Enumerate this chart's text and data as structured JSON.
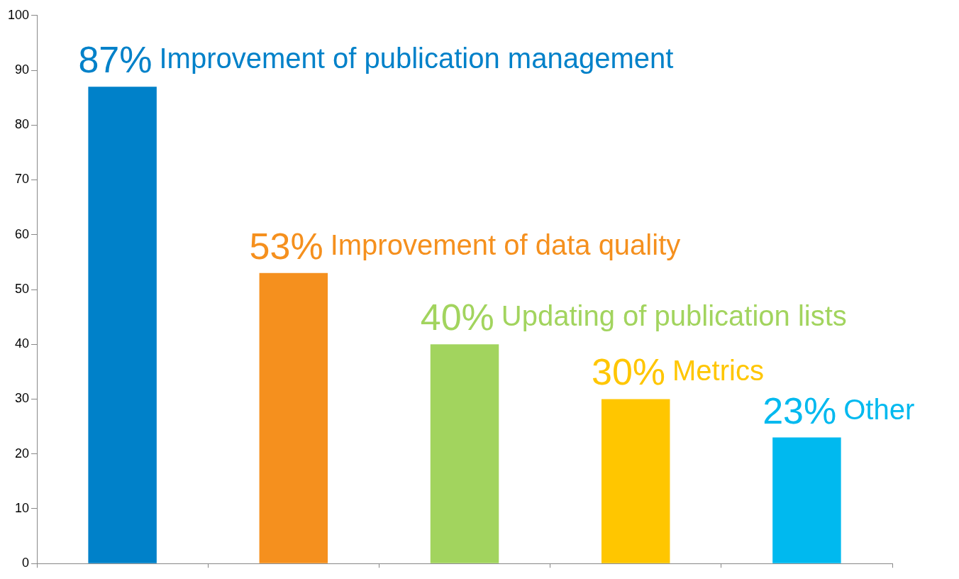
{
  "chart_data": {
    "type": "bar",
    "categories": [
      null,
      null,
      null,
      null,
      null
    ],
    "series": [
      {
        "name": "Improvement of publication management",
        "color": "#0081c9",
        "values": [
          87,
          null,
          null,
          null,
          null
        ],
        "value_labels": [
          "87%",
          null,
          null,
          null,
          null
        ]
      },
      {
        "name": "Improvement of data quality",
        "color": "#f5901e",
        "values": [
          null,
          53,
          null,
          null,
          null
        ],
        "value_labels": [
          null,
          "53%",
          null,
          null,
          null
        ]
      },
      {
        "name": "Updating of publication lists",
        "color": "#a2d45e",
        "values": [
          null,
          null,
          40,
          null,
          null
        ],
        "value_labels": [
          null,
          null,
          "40%",
          null,
          null
        ]
      },
      {
        "name": "Metrics",
        "color": "#ffc600",
        "values": [
          null,
          null,
          null,
          30,
          null
        ],
        "value_labels": [
          null,
          null,
          null,
          "30%",
          null
        ]
      },
      {
        "name": "Other",
        "color": "#00b9ef",
        "values": [
          null,
          null,
          null,
          null,
          23
        ],
        "value_labels": [
          null,
          null,
          null,
          null,
          "23%"
        ]
      }
    ],
    "ylim": [
      0,
      100
    ],
    "yticks": [
      0,
      10,
      20,
      30,
      40,
      50,
      60,
      70,
      80,
      90,
      100
    ],
    "grid": false,
    "legend": false,
    "tick_labels": "y"
  }
}
